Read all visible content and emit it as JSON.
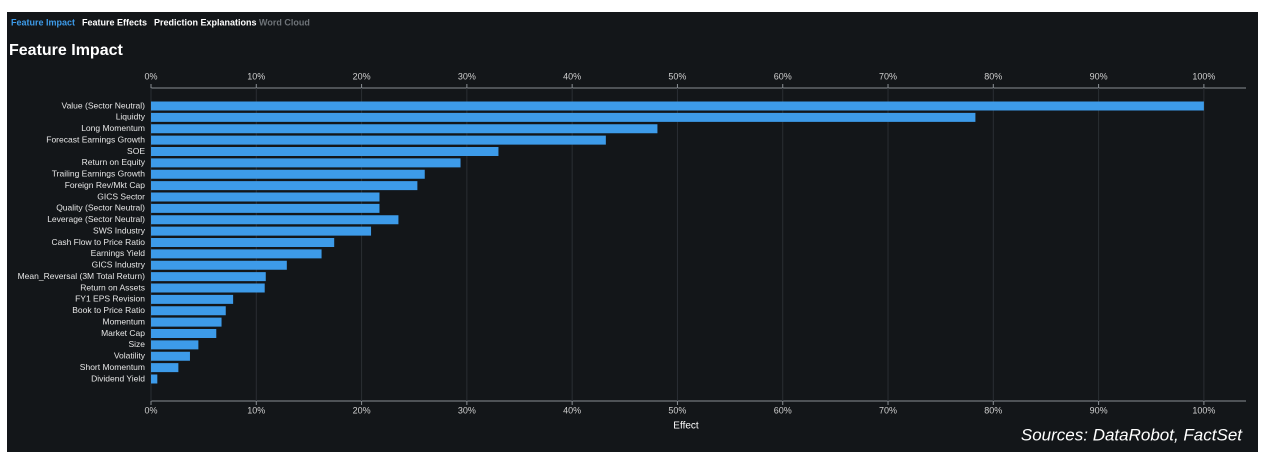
{
  "tabs": [
    "Feature Impact",
    "Feature Effects",
    "Prediction Explanations",
    "Word Cloud"
  ],
  "source": "Sources: DataRobot, FactSet",
  "chart_data": {
    "type": "bar",
    "orientation": "horizontal",
    "title": "Feature Impact",
    "xlabel": "Effect",
    "categories": [
      "Value (Sector Neutral)",
      "Liquidty",
      "Long Momentum",
      "Forecast Earnings Growth",
      "SOE",
      "Return on Equity",
      "Trailing Earnings Growth",
      "Foreign Rev/Mkt Cap",
      "GICS Sector",
      "Quality (Sector Neutral)",
      "Leverage (Sector Neutral)",
      "SWS Industry",
      "Cash Flow to Price Ratio",
      "Earnings Yield",
      "GICS Industry",
      "Mean_Reversal (3M Total Return)",
      "Return on Assets",
      "FY1 EPS Revision",
      "Book to Price Ratio",
      "Momentum",
      "Market Cap",
      "Size",
      "Volatility",
      "Short Momentum",
      "Dividend Yield"
    ],
    "values": [
      100,
      78.3,
      48.1,
      43.2,
      33.0,
      29.4,
      26.0,
      25.3,
      21.7,
      21.7,
      23.5,
      20.9,
      17.4,
      16.2,
      12.9,
      10.9,
      10.8,
      7.8,
      7.1,
      6.7,
      6.2,
      4.5,
      3.7,
      2.6,
      0.6
    ],
    "color": "#3d9be9",
    "xlim": [
      0,
      104
    ],
    "xticks": [
      {
        "value": 0,
        "label": "0%"
      },
      {
        "value": 10,
        "label": "10%"
      },
      {
        "value": 20,
        "label": "20%"
      },
      {
        "value": 30,
        "label": "30%"
      },
      {
        "value": 40,
        "label": "40%"
      },
      {
        "value": 50,
        "label": "50%"
      },
      {
        "value": 60,
        "label": "60%"
      },
      {
        "value": 70,
        "label": "70%"
      },
      {
        "value": 80,
        "label": "80%"
      },
      {
        "value": 90,
        "label": "90%"
      },
      {
        "value": 100,
        "label": "100%"
      }
    ],
    "grid": true
  }
}
